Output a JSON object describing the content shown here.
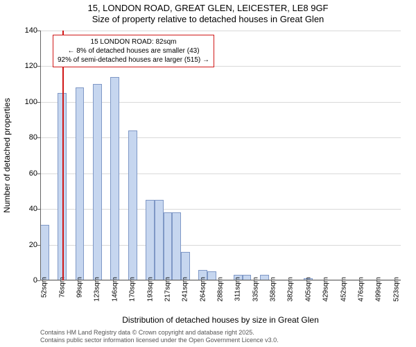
{
  "title_line1": "15, LONDON ROAD, GREAT GLEN, LEICESTER, LE8 9GF",
  "title_line2": "Size of property relative to detached houses in Great Glen",
  "ylabel": "Number of detached properties",
  "xlabel": "Distribution of detached houses by size in Great Glen",
  "ylim_max": 140,
  "ytick_step": 20,
  "yticks": [
    0,
    20,
    40,
    60,
    80,
    100,
    120,
    140
  ],
  "grid_color": "#d9d9d9",
  "bar_fill": "#c6d6ef",
  "bar_stroke": "#7f98c6",
  "background_color": "#ffffff",
  "marker_color": "#d01717",
  "callout_border": "#d01717",
  "marker_value_sqm": 82,
  "callout_lines": [
    "15 LONDON ROAD: 82sqm",
    "← 8% of detached houses are smaller (43)",
    "92% of semi-detached houses are larger (515) →"
  ],
  "x_start": 52,
  "x_bin_width": 12,
  "x_labels_shown": [
    "52sqm",
    "76sqm",
    "99sqm",
    "123sqm",
    "146sqm",
    "170sqm",
    "193sqm",
    "217sqm",
    "241sqm",
    "264sqm",
    "288sqm",
    "311sqm",
    "335sqm",
    "358sqm",
    "382sqm",
    "405sqm",
    "429sqm",
    "452sqm",
    "476sqm",
    "499sqm",
    "523sqm"
  ],
  "x_label_every_n_bins": 2,
  "bars": [
    31,
    0,
    105,
    0,
    108,
    0,
    110,
    0,
    114,
    0,
    84,
    0,
    45,
    45,
    38,
    38,
    16,
    0,
    6,
    5,
    0,
    0,
    3,
    3,
    0,
    3,
    0,
    0,
    0,
    0,
    1,
    0,
    0,
    0,
    0,
    0,
    0,
    0,
    0,
    0,
    0
  ],
  "footer_line1": "Contains HM Land Registry data © Crown copyright and database right 2025.",
  "footer_line2": "Contains public sector information licensed under the Open Government Licence v3.0."
}
